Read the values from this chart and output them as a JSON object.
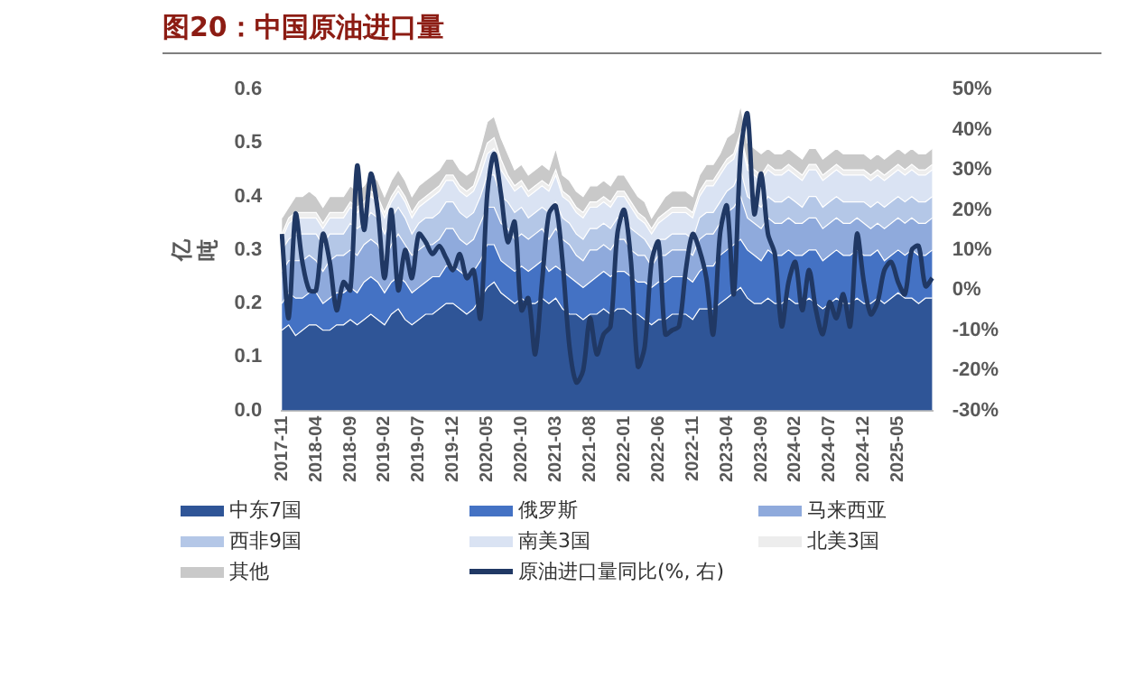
{
  "chart_data": {
    "type": "area",
    "title": "图20：中国原油进口量",
    "ylabel": "亿吨",
    "stacked": true,
    "grid": false,
    "legend": "bottom",
    "categories": [
      "2017-11",
      null,
      null,
      null,
      null,
      "2018-04",
      null,
      null,
      null,
      null,
      "2018-09",
      null,
      null,
      null,
      null,
      "2019-02",
      null,
      null,
      null,
      null,
      "2019-07",
      null,
      null,
      null,
      null,
      "2019-12",
      null,
      null,
      null,
      null,
      "2020-05",
      null,
      null,
      null,
      null,
      "2020-10",
      null,
      null,
      null,
      null,
      "2021-03",
      null,
      null,
      null,
      null,
      "2021-08",
      null,
      null,
      null,
      null,
      "2022-01",
      null,
      null,
      null,
      null,
      "2022-06",
      null,
      null,
      null,
      null,
      "2022-11",
      null,
      null,
      null,
      null,
      "2023-04",
      null,
      null,
      null,
      null,
      "2023-09",
      null,
      null,
      null,
      null,
      "2024-02",
      null,
      null,
      null,
      null,
      "2024-07",
      null,
      null,
      null,
      null,
      "2024-12",
      null,
      null,
      null,
      null,
      "2025-05",
      null,
      null,
      null,
      null,
      null
    ],
    "ylim": [
      0,
      0.6
    ],
    "yticks": [
      {
        "value": 0,
        "label": "0.0"
      },
      0.1,
      0.2,
      0.3,
      0.4,
      0.5,
      0.6
    ],
    "y2lim": [
      -30,
      50
    ],
    "y2ticks": [
      {
        "value": -30,
        "label": "-30%"
      },
      {
        "value": -20,
        "label": "-20%"
      },
      {
        "value": -10,
        "label": "-10%"
      },
      {
        "value": 0,
        "label": "0%"
      },
      {
        "value": 10,
        "label": "10%"
      },
      {
        "value": 20,
        "label": "20%"
      },
      {
        "value": 30,
        "label": "30%"
      },
      {
        "value": 40,
        "label": "40%"
      },
      {
        "value": 50,
        "label": "50%"
      }
    ],
    "series": [
      {
        "name": "中东7国",
        "color": "#2f5597",
        "values": [
          0.15,
          0.16,
          0.14,
          0.15,
          0.16,
          0.16,
          0.15,
          0.15,
          0.16,
          0.16,
          0.17,
          0.16,
          0.17,
          0.18,
          0.17,
          0.16,
          0.18,
          0.19,
          0.17,
          0.16,
          0.17,
          0.18,
          0.18,
          0.19,
          0.2,
          0.2,
          0.19,
          0.18,
          0.19,
          0.21,
          0.23,
          0.24,
          0.22,
          0.21,
          0.2,
          0.21,
          0.2,
          0.2,
          0.21,
          0.2,
          0.21,
          0.19,
          0.18,
          0.18,
          0.17,
          0.18,
          0.18,
          0.19,
          0.18,
          0.19,
          0.19,
          0.18,
          0.18,
          0.17,
          0.16,
          0.17,
          0.17,
          0.18,
          0.18,
          0.18,
          0.17,
          0.19,
          0.19,
          0.19,
          0.2,
          0.21,
          0.22,
          0.23,
          0.21,
          0.2,
          0.2,
          0.21,
          0.2,
          0.2,
          0.21,
          0.2,
          0.2,
          0.21,
          0.2,
          0.19,
          0.2,
          0.21,
          0.2,
          0.2,
          0.21,
          0.2,
          0.2,
          0.21,
          0.2,
          0.21,
          0.22,
          0.21,
          0.21,
          0.2,
          0.21,
          0.21
        ]
      },
      {
        "name": "俄罗斯",
        "color": "#4472c4",
        "values": [
          0.05,
          0.06,
          0.07,
          0.06,
          0.06,
          0.06,
          0.05,
          0.06,
          0.06,
          0.06,
          0.06,
          0.06,
          0.07,
          0.07,
          0.07,
          0.06,
          0.06,
          0.06,
          0.07,
          0.06,
          0.06,
          0.06,
          0.07,
          0.06,
          0.07,
          0.07,
          0.07,
          0.07,
          0.07,
          0.07,
          0.08,
          0.07,
          0.06,
          0.06,
          0.06,
          0.06,
          0.06,
          0.07,
          0.07,
          0.06,
          0.06,
          0.07,
          0.07,
          0.06,
          0.06,
          0.06,
          0.07,
          0.07,
          0.07,
          0.07,
          0.07,
          0.07,
          0.06,
          0.07,
          0.07,
          0.07,
          0.07,
          0.07,
          0.07,
          0.07,
          0.07,
          0.07,
          0.08,
          0.08,
          0.09,
          0.09,
          0.09,
          0.09,
          0.09,
          0.09,
          0.08,
          0.09,
          0.09,
          0.09,
          0.09,
          0.09,
          0.09,
          0.09,
          0.1,
          0.09,
          0.09,
          0.09,
          0.09,
          0.09,
          0.09,
          0.09,
          0.09,
          0.09,
          0.08,
          0.08,
          0.08,
          0.08,
          0.09,
          0.09,
          0.08,
          0.09
        ]
      },
      {
        "name": "马来西亚",
        "color": "#8faadc",
        "values": [
          0.06,
          0.06,
          0.07,
          0.07,
          0.07,
          0.06,
          0.06,
          0.07,
          0.07,
          0.07,
          0.07,
          0.07,
          0.07,
          0.07,
          0.07,
          0.06,
          0.07,
          0.08,
          0.07,
          0.07,
          0.07,
          0.07,
          0.06,
          0.07,
          0.07,
          0.07,
          0.06,
          0.06,
          0.06,
          0.07,
          0.07,
          0.07,
          0.07,
          0.07,
          0.06,
          0.06,
          0.06,
          0.06,
          0.06,
          0.06,
          0.07,
          0.06,
          0.06,
          0.05,
          0.05,
          0.06,
          0.05,
          0.05,
          0.05,
          0.06,
          0.06,
          0.05,
          0.05,
          0.05,
          0.04,
          0.05,
          0.05,
          0.05,
          0.05,
          0.05,
          0.05,
          0.06,
          0.06,
          0.06,
          0.06,
          0.07,
          0.07,
          0.08,
          0.06,
          0.06,
          0.06,
          0.06,
          0.06,
          0.06,
          0.06,
          0.06,
          0.06,
          0.06,
          0.06,
          0.06,
          0.06,
          0.06,
          0.06,
          0.06,
          0.06,
          0.06,
          0.05,
          0.05,
          0.06,
          0.06,
          0.06,
          0.06,
          0.06,
          0.06,
          0.06,
          0.06
        ]
      },
      {
        "name": "西非9国",
        "color": "#b4c7e7",
        "values": [
          0.04,
          0.04,
          0.05,
          0.05,
          0.04,
          0.05,
          0.05,
          0.05,
          0.04,
          0.04,
          0.05,
          0.05,
          0.04,
          0.05,
          0.05,
          0.05,
          0.05,
          0.05,
          0.05,
          0.04,
          0.05,
          0.05,
          0.05,
          0.05,
          0.05,
          0.05,
          0.05,
          0.05,
          0.05,
          0.05,
          0.06,
          0.06,
          0.05,
          0.05,
          0.05,
          0.05,
          0.04,
          0.04,
          0.04,
          0.05,
          0.05,
          0.04,
          0.04,
          0.04,
          0.04,
          0.04,
          0.04,
          0.04,
          0.04,
          0.04,
          0.04,
          0.04,
          0.04,
          0.03,
          0.03,
          0.03,
          0.03,
          0.03,
          0.03,
          0.03,
          0.03,
          0.04,
          0.04,
          0.04,
          0.04,
          0.04,
          0.04,
          0.05,
          0.04,
          0.04,
          0.04,
          0.04,
          0.04,
          0.04,
          0.04,
          0.04,
          0.03,
          0.04,
          0.04,
          0.04,
          0.04,
          0.04,
          0.04,
          0.04,
          0.03,
          0.04,
          0.04,
          0.04,
          0.04,
          0.04,
          0.04,
          0.04,
          0.04,
          0.04,
          0.04,
          0.04
        ]
      },
      {
        "name": "南美3国",
        "color": "#dae3f3",
        "values": [
          0.02,
          0.03,
          0.03,
          0.03,
          0.03,
          0.03,
          0.03,
          0.03,
          0.03,
          0.03,
          0.03,
          0.03,
          0.03,
          0.03,
          0.03,
          0.03,
          0.03,
          0.03,
          0.03,
          0.03,
          0.03,
          0.03,
          0.04,
          0.04,
          0.04,
          0.04,
          0.04,
          0.04,
          0.04,
          0.04,
          0.04,
          0.05,
          0.05,
          0.04,
          0.04,
          0.04,
          0.04,
          0.04,
          0.04,
          0.04,
          0.05,
          0.04,
          0.04,
          0.04,
          0.04,
          0.04,
          0.04,
          0.04,
          0.04,
          0.04,
          0.04,
          0.04,
          0.03,
          0.03,
          0.03,
          0.03,
          0.04,
          0.04,
          0.04,
          0.04,
          0.04,
          0.04,
          0.05,
          0.05,
          0.05,
          0.05,
          0.05,
          0.06,
          0.05,
          0.05,
          0.05,
          0.05,
          0.05,
          0.05,
          0.05,
          0.05,
          0.05,
          0.05,
          0.05,
          0.05,
          0.05,
          0.05,
          0.05,
          0.05,
          0.05,
          0.05,
          0.05,
          0.05,
          0.05,
          0.05,
          0.05,
          0.05,
          0.05,
          0.05,
          0.05,
          0.05
        ]
      },
      {
        "name": "北美3国",
        "color": "#ededed",
        "values": [
          0.01,
          0.01,
          0.01,
          0.01,
          0.01,
          0.01,
          0.01,
          0.01,
          0.01,
          0.01,
          0.01,
          0.01,
          0.01,
          0.01,
          0.01,
          0.01,
          0.01,
          0.01,
          0.01,
          0.01,
          0.01,
          0.01,
          0.01,
          0.01,
          0.01,
          0.01,
          0.01,
          0.01,
          0.01,
          0.02,
          0.02,
          0.02,
          0.02,
          0.01,
          0.01,
          0.01,
          0.01,
          0.01,
          0.01,
          0.01,
          0.01,
          0.01,
          0.01,
          0.01,
          0.01,
          0.01,
          0.01,
          0.01,
          0.01,
          0.01,
          0.01,
          0.01,
          0.01,
          0.01,
          0.01,
          0.01,
          0.01,
          0.01,
          0.01,
          0.01,
          0.01,
          0.01,
          0.01,
          0.01,
          0.01,
          0.01,
          0.01,
          0.01,
          0.01,
          0.01,
          0.01,
          0.01,
          0.01,
          0.01,
          0.01,
          0.01,
          0.01,
          0.01,
          0.01,
          0.01,
          0.01,
          0.01,
          0.01,
          0.01,
          0.01,
          0.01,
          0.01,
          0.01,
          0.01,
          0.01,
          0.01,
          0.01,
          0.01,
          0.01,
          0.01,
          0.01
        ]
      },
      {
        "name": "其他",
        "color": "#c9c9c9",
        "values": [
          0.03,
          0.02,
          0.03,
          0.03,
          0.04,
          0.03,
          0.03,
          0.03,
          0.03,
          0.03,
          0.03,
          0.03,
          0.03,
          0.03,
          0.03,
          0.03,
          0.03,
          0.03,
          0.03,
          0.03,
          0.03,
          0.03,
          0.03,
          0.03,
          0.03,
          0.03,
          0.03,
          0.03,
          0.03,
          0.03,
          0.04,
          0.04,
          0.04,
          0.04,
          0.03,
          0.03,
          0.03,
          0.03,
          0.03,
          0.03,
          0.04,
          0.03,
          0.03,
          0.03,
          0.03,
          0.03,
          0.03,
          0.03,
          0.03,
          0.03,
          0.03,
          0.03,
          0.03,
          0.03,
          0.02,
          0.02,
          0.03,
          0.03,
          0.03,
          0.03,
          0.03,
          0.03,
          0.03,
          0.03,
          0.03,
          0.04,
          0.04,
          0.05,
          0.04,
          0.04,
          0.04,
          0.03,
          0.03,
          0.03,
          0.03,
          0.03,
          0.03,
          0.03,
          0.03,
          0.03,
          0.03,
          0.03,
          0.03,
          0.03,
          0.03,
          0.03,
          0.03,
          0.03,
          0.03,
          0.03,
          0.03,
          0.03,
          0.03,
          0.03,
          0.03,
          0.03
        ]
      },
      {
        "name": "原油进口量同比(%, 右)",
        "type": "line",
        "axis": "y2",
        "color": "#203864",
        "values": [
          14,
          -7,
          19,
          7,
          0,
          0,
          14,
          7,
          -5,
          2,
          0,
          31,
          15,
          29,
          20,
          3,
          20,
          0,
          10,
          3,
          14,
          12,
          9,
          11,
          8,
          5,
          9,
          3,
          5,
          -7,
          24,
          34,
          24,
          12,
          17,
          -5,
          -2,
          -16,
          2,
          19,
          21,
          7,
          -14,
          -23,
          -20,
          -7,
          -16,
          -11,
          -9,
          14,
          20,
          7,
          -19,
          -14,
          7,
          12,
          -11,
          -10,
          -9,
          5,
          14,
          10,
          3,
          -11,
          14,
          21,
          -1,
          34,
          44,
          19,
          29,
          14,
          9,
          -9,
          2,
          7,
          -5,
          5,
          -5,
          -11,
          -3,
          -7,
          -1,
          -9,
          14,
          2,
          -6,
          -3,
          5,
          7,
          2,
          -1,
          10,
          11,
          1,
          3
        ]
      }
    ]
  }
}
